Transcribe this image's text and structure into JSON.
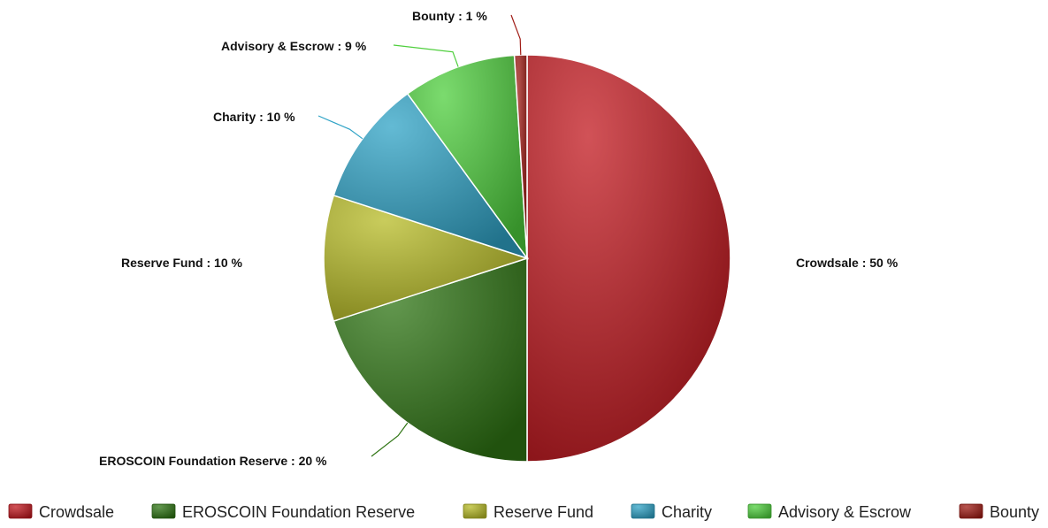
{
  "chart_data": {
    "type": "pie",
    "categories": [
      "Crowdsale",
      "EROSCOIN Foundation Reserve",
      "Reserve Fund",
      "Charity",
      "Advisory & Escrow",
      "Bounty"
    ],
    "values": [
      50,
      20,
      10,
      10,
      9,
      1
    ],
    "colors": [
      "#c1181f",
      "#2f7514",
      "#b7bb26",
      "#2fa3c6",
      "#4fcf3d",
      "#a01c16"
    ],
    "slice_labels": [
      "Crowdsale : 50 %",
      "EROSCOIN Foundation Reserve : 20 %",
      "Reserve Fund : 10 %",
      "Charity : 10 %",
      "Advisory & Escrow : 9 %",
      "Bounty : 1 %"
    ],
    "legend_position": "bottom"
  }
}
